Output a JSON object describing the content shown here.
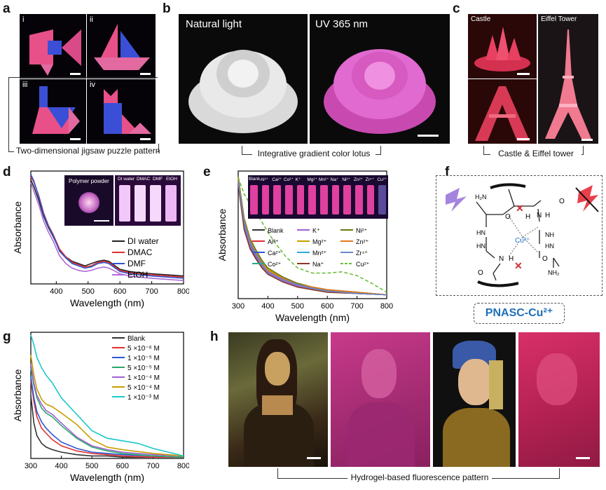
{
  "panels": {
    "a": {
      "label": "a",
      "sublabels": [
        "i",
        "ii",
        "iii",
        "iv"
      ],
      "caption": "Two-dimensional jigsaw puzzle pattern"
    },
    "b": {
      "label": "b",
      "photo_titles": [
        "Natural light",
        "UV 365 nm"
      ],
      "caption": "Integrative gradient color lotus"
    },
    "c": {
      "label": "c",
      "photo_titles": [
        "Castle",
        "Eiffel Tower"
      ],
      "caption": "Castle & Eiffel tower"
    },
    "d": {
      "label": "d",
      "inset_titles": [
        "Polymer powder",
        "DI water",
        "DMAC",
        "DMF",
        "EtOH"
      ]
    },
    "e": {
      "label": "e",
      "inset_titles": [
        "Blank",
        "Al³⁺",
        "Ca²⁺",
        "Co²⁺",
        "K⁺",
        "Mg²⁺",
        "Mn²⁺",
        "Na⁺",
        "Ni²⁺",
        "Zn²⁺",
        "Zr⁴⁺",
        "Cu²⁺"
      ]
    },
    "f": {
      "label": "f",
      "structure_labels": {
        "h2n_top": "H₂N",
        "o1": "O",
        "h1": "H",
        "cu": "Cu²⁺",
        "hn1": "HN",
        "hn2": "HN",
        "n1": "N",
        "h2": "H",
        "o2": "O",
        "n2": "N",
        "h3": "H",
        "o3": "O",
        "nh": "NH",
        "nh2": "NH₂",
        "o4": "O",
        "hn3": "HN"
      },
      "name": "PNASC-Cu²⁺"
    },
    "g": {
      "label": "g"
    },
    "h": {
      "label": "h",
      "caption": "Hydrogel-based  fluorescence pattern"
    }
  },
  "chart_data": [
    {
      "id": "d",
      "type": "line",
      "xlabel": "Wavelength (nm)",
      "ylabel": "Absorbance",
      "xlim": [
        320,
        800
      ],
      "xticks": [
        400,
        500,
        600,
        700,
        800
      ],
      "legend_position": "right",
      "series": [
        {
          "name": "DI water",
          "color": "#222222",
          "x": [
            320,
            330,
            345,
            360,
            375,
            390,
            410,
            430,
            450,
            470,
            490,
            510,
            530,
            550,
            565,
            580,
            600,
            630,
            660,
            700,
            750,
            800
          ],
          "y": [
            0.92,
            0.86,
            0.74,
            0.6,
            0.5,
            0.42,
            0.3,
            0.24,
            0.2,
            0.18,
            0.16,
            0.18,
            0.2,
            0.21,
            0.2,
            0.17,
            0.13,
            0.11,
            0.1,
            0.09,
            0.08,
            0.07
          ]
        },
        {
          "name": "DMAC",
          "color": "#e03030",
          "x": [
            320,
            330,
            345,
            360,
            375,
            390,
            410,
            430,
            450,
            470,
            490,
            510,
            530,
            550,
            565,
            580,
            600,
            630,
            660,
            700,
            750,
            800
          ],
          "y": [
            0.95,
            0.9,
            0.78,
            0.63,
            0.52,
            0.44,
            0.31,
            0.24,
            0.19,
            0.17,
            0.15,
            0.16,
            0.19,
            0.2,
            0.19,
            0.16,
            0.12,
            0.1,
            0.09,
            0.08,
            0.07,
            0.06
          ]
        },
        {
          "name": "DMF",
          "color": "#2d57d0",
          "x": [
            320,
            330,
            345,
            360,
            375,
            390,
            410,
            430,
            450,
            470,
            490,
            510,
            530,
            550,
            565,
            580,
            600,
            630,
            660,
            700,
            750,
            800
          ],
          "y": [
            0.97,
            0.91,
            0.77,
            0.62,
            0.51,
            0.43,
            0.29,
            0.23,
            0.18,
            0.16,
            0.14,
            0.15,
            0.18,
            0.19,
            0.18,
            0.15,
            0.11,
            0.09,
            0.08,
            0.07,
            0.06,
            0.05
          ]
        },
        {
          "name": "EtOH",
          "color": "#b06ad8",
          "x": [
            320,
            330,
            345,
            360,
            375,
            390,
            410,
            430,
            450,
            470,
            490,
            510,
            530,
            550,
            565,
            580,
            600,
            630,
            660,
            700,
            750,
            800
          ],
          "y": [
            0.9,
            0.82,
            0.7,
            0.56,
            0.46,
            0.38,
            0.25,
            0.18,
            0.14,
            0.12,
            0.11,
            0.12,
            0.14,
            0.15,
            0.14,
            0.12,
            0.09,
            0.07,
            0.06,
            0.05,
            0.04,
            0.03
          ]
        }
      ]
    },
    {
      "id": "e",
      "type": "line",
      "xlabel": "Wavelength (nm)",
      "ylabel": "Absorbance",
      "xlim": [
        300,
        800
      ],
      "xticks": [
        300,
        400,
        500,
        600,
        700,
        800
      ],
      "legend_position": "right",
      "series": [
        {
          "name": "Blank",
          "color": "#333333",
          "x": [
            300,
            320,
            340,
            360,
            380,
            400,
            450,
            500,
            550,
            600,
            700,
            800
          ],
          "y": [
            0.9,
            0.55,
            0.4,
            0.32,
            0.25,
            0.2,
            0.14,
            0.1,
            0.08,
            0.06,
            0.04,
            0.03
          ]
        },
        {
          "name": "Al³⁺",
          "color": "#e03030",
          "x": [
            300,
            320,
            340,
            360,
            380,
            400,
            450,
            500,
            550,
            600,
            700,
            800
          ],
          "y": [
            0.92,
            0.6,
            0.45,
            0.36,
            0.28,
            0.22,
            0.16,
            0.12,
            0.09,
            0.07,
            0.05,
            0.03
          ]
        },
        {
          "name": "Ca²⁺",
          "color": "#2d57d0",
          "x": [
            300,
            320,
            340,
            360,
            380,
            400,
            450,
            500,
            550,
            600,
            700,
            800
          ],
          "y": [
            0.93,
            0.58,
            0.43,
            0.34,
            0.26,
            0.21,
            0.15,
            0.11,
            0.08,
            0.06,
            0.04,
            0.03
          ]
        },
        {
          "name": "Co²⁺",
          "color": "#2aa888",
          "x": [
            300,
            320,
            340,
            360,
            380,
            400,
            450,
            500,
            550,
            600,
            700,
            800
          ],
          "y": [
            0.91,
            0.57,
            0.42,
            0.33,
            0.25,
            0.2,
            0.14,
            0.1,
            0.08,
            0.06,
            0.04,
            0.03
          ]
        },
        {
          "name": "K⁺",
          "color": "#a060d0",
          "x": [
            300,
            320,
            340,
            360,
            380,
            400,
            450,
            500,
            550,
            600,
            700,
            800
          ],
          "y": [
            0.94,
            0.56,
            0.41,
            0.33,
            0.26,
            0.2,
            0.14,
            0.1,
            0.08,
            0.06,
            0.04,
            0.03
          ]
        },
        {
          "name": "Mg²⁺",
          "color": "#c8a000",
          "x": [
            300,
            320,
            340,
            360,
            380,
            400,
            450,
            500,
            550,
            600,
            700,
            800
          ],
          "y": [
            0.95,
            0.62,
            0.46,
            0.37,
            0.29,
            0.23,
            0.16,
            0.12,
            0.09,
            0.07,
            0.05,
            0.03
          ]
        },
        {
          "name": "Mn²⁺",
          "color": "#30a8e0",
          "x": [
            300,
            320,
            340,
            360,
            380,
            400,
            450,
            500,
            550,
            600,
            700,
            800
          ],
          "y": [
            0.93,
            0.59,
            0.44,
            0.35,
            0.27,
            0.21,
            0.15,
            0.11,
            0.08,
            0.06,
            0.04,
            0.03
          ]
        },
        {
          "name": "Na⁺",
          "color": "#8a3a2a",
          "x": [
            300,
            320,
            340,
            360,
            380,
            400,
            450,
            500,
            550,
            600,
            700,
            800
          ],
          "y": [
            0.9,
            0.54,
            0.39,
            0.31,
            0.24,
            0.19,
            0.13,
            0.09,
            0.07,
            0.05,
            0.04,
            0.03
          ]
        },
        {
          "name": "Ni²⁺",
          "color": "#6a7a10",
          "x": [
            300,
            320,
            340,
            360,
            380,
            400,
            450,
            500,
            550,
            600,
            700,
            800
          ],
          "y": [
            0.96,
            0.63,
            0.47,
            0.38,
            0.3,
            0.24,
            0.17,
            0.12,
            0.09,
            0.07,
            0.05,
            0.03
          ]
        },
        {
          "name": "Zn²⁺",
          "color": "#e07a20",
          "x": [
            300,
            320,
            340,
            360,
            380,
            400,
            450,
            500,
            550,
            600,
            700,
            800
          ],
          "y": [
            0.94,
            0.61,
            0.45,
            0.36,
            0.28,
            0.22,
            0.16,
            0.11,
            0.09,
            0.07,
            0.05,
            0.03
          ]
        },
        {
          "name": "Zr⁴⁺",
          "color": "#6a88c8",
          "x": [
            300,
            320,
            340,
            360,
            380,
            400,
            450,
            500,
            550,
            600,
            700,
            800
          ],
          "y": [
            0.92,
            0.6,
            0.44,
            0.35,
            0.27,
            0.21,
            0.15,
            0.11,
            0.08,
            0.06,
            0.04,
            0.03
          ]
        },
        {
          "name": "Cu²⁺",
          "color": "#6cbf3a",
          "dashed": true,
          "x": [
            300,
            320,
            340,
            360,
            380,
            400,
            430,
            460,
            500,
            550,
            600,
            650,
            700,
            750,
            800
          ],
          "y": [
            0.95,
            0.82,
            0.74,
            0.68,
            0.6,
            0.52,
            0.42,
            0.33,
            0.24,
            0.2,
            0.2,
            0.21,
            0.18,
            0.12,
            0.05
          ]
        }
      ]
    },
    {
      "id": "g",
      "type": "line",
      "xlabel": "Wavelength (nm)",
      "ylabel": "Absorbance",
      "xlim": [
        300,
        800
      ],
      "xticks": [
        300,
        400,
        500,
        600,
        700,
        800
      ],
      "legend_position": "top-right",
      "series": [
        {
          "name": "Blank",
          "color": "#333333",
          "x": [
            300,
            310,
            320,
            335,
            350,
            370,
            400,
            450,
            500,
            550,
            600,
            700,
            800
          ],
          "y": [
            0.5,
            0.28,
            0.18,
            0.12,
            0.09,
            0.07,
            0.05,
            0.03,
            0.02,
            0.02,
            0.01,
            0.01,
            0.01
          ]
        },
        {
          "name": "5 ×10⁻⁶ M",
          "color": "#e03030",
          "x": [
            300,
            310,
            320,
            335,
            350,
            370,
            400,
            450,
            500,
            550,
            600,
            700,
            800
          ],
          "y": [
            0.62,
            0.45,
            0.33,
            0.24,
            0.2,
            0.15,
            0.1,
            0.06,
            0.04,
            0.03,
            0.02,
            0.01,
            0.01
          ]
        },
        {
          "name": "1 ×10⁻⁵ M",
          "color": "#2d57d0",
          "x": [
            300,
            310,
            320,
            335,
            350,
            370,
            400,
            450,
            500,
            550,
            600,
            700,
            800
          ],
          "y": [
            0.65,
            0.48,
            0.37,
            0.29,
            0.24,
            0.19,
            0.13,
            0.08,
            0.05,
            0.04,
            0.03,
            0.02,
            0.01
          ]
        },
        {
          "name": "5 ×10⁻⁵ M",
          "color": "#2aa86a",
          "x": [
            300,
            310,
            320,
            335,
            350,
            370,
            400,
            450,
            500,
            550,
            600,
            700,
            800
          ],
          "y": [
            0.72,
            0.58,
            0.48,
            0.4,
            0.36,
            0.33,
            0.26,
            0.16,
            0.09,
            0.06,
            0.04,
            0.02,
            0.01
          ]
        },
        {
          "name": "1 ×10⁻⁴ M",
          "color": "#a060d0",
          "x": [
            300,
            310,
            320,
            335,
            350,
            370,
            400,
            450,
            500,
            550,
            600,
            700,
            800
          ],
          "y": [
            0.75,
            0.6,
            0.5,
            0.43,
            0.38,
            0.35,
            0.28,
            0.17,
            0.1,
            0.07,
            0.05,
            0.03,
            0.02
          ]
        },
        {
          "name": "5 ×10⁻⁴ M",
          "color": "#c8a000",
          "x": [
            300,
            310,
            320,
            335,
            350,
            370,
            400,
            450,
            500,
            550,
            600,
            700,
            800
          ],
          "y": [
            0.82,
            0.66,
            0.55,
            0.47,
            0.43,
            0.41,
            0.36,
            0.27,
            0.15,
            0.09,
            0.07,
            0.04,
            0.02
          ]
        },
        {
          "name": "1 ×10⁻³ M",
          "color": "#1cc8c8",
          "x": [
            300,
            310,
            320,
            335,
            350,
            370,
            400,
            450,
            500,
            550,
            600,
            650,
            700,
            800
          ],
          "y": [
            0.98,
            0.9,
            0.8,
            0.72,
            0.66,
            0.6,
            0.48,
            0.35,
            0.22,
            0.16,
            0.14,
            0.12,
            0.08,
            0.02
          ]
        }
      ]
    }
  ]
}
